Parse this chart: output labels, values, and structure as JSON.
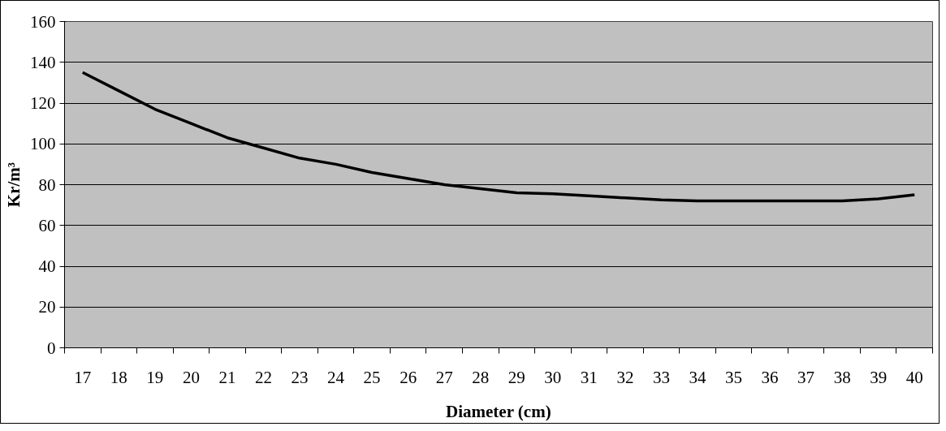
{
  "chart_data": {
    "type": "line",
    "xlabel": "Diameter (cm)",
    "ylabel": "Kr/m³",
    "categories": [
      "17",
      "18",
      "19",
      "20",
      "21",
      "22",
      "23",
      "24",
      "25",
      "26",
      "27",
      "28",
      "29",
      "30",
      "31",
      "32",
      "33",
      "34",
      "35",
      "36",
      "37",
      "38",
      "39",
      "40"
    ],
    "series": [
      {
        "color": "#000000",
        "values": [
          135,
          126,
          117,
          110,
          103,
          98,
          93,
          90,
          86,
          83,
          80,
          78,
          76,
          75.5,
          74.5,
          73.5,
          72.5,
          72,
          72,
          72,
          72,
          72,
          73,
          75
        ]
      }
    ],
    "ylim": [
      0,
      160
    ],
    "yticks": [
      0,
      20,
      40,
      60,
      80,
      100,
      120,
      140,
      160
    ],
    "grid": "y",
    "marker": "none",
    "line_style": "solid"
  }
}
